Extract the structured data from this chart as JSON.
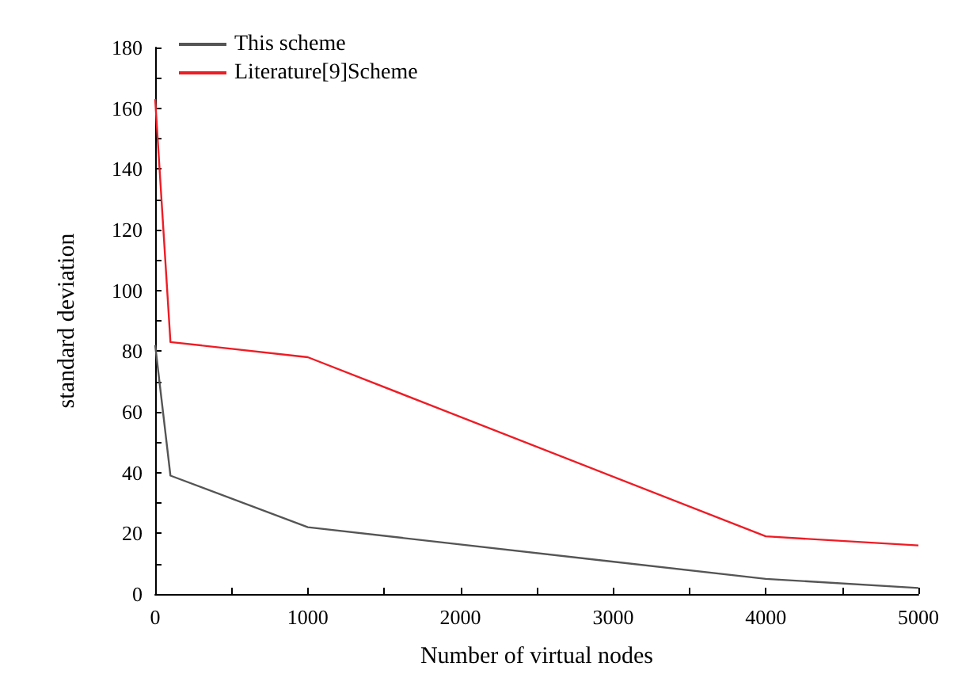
{
  "chart_data": {
    "type": "line",
    "xlabel": "Number of virtual nodes",
    "ylabel": "standard deviation",
    "x": [
      0,
      100,
      1000,
      4000,
      5000
    ],
    "series": [
      {
        "name": "This scheme",
        "color": "#555555",
        "values": [
          82,
          39,
          22,
          5,
          2
        ]
      },
      {
        "name": "Literature[9]Scheme",
        "color": "#ee1c25",
        "values": [
          163,
          83,
          78,
          19,
          16
        ]
      }
    ],
    "xlim": [
      0,
      5000
    ],
    "xticks": [
      0,
      1000,
      2000,
      3000,
      4000,
      5000
    ],
    "ylim": [
      0,
      180
    ],
    "yticks": [
      0,
      20,
      40,
      60,
      80,
      100,
      120,
      140,
      160,
      180
    ],
    "grid": false,
    "legend": "top left",
    "marker": "none",
    "line_style": "solid"
  }
}
